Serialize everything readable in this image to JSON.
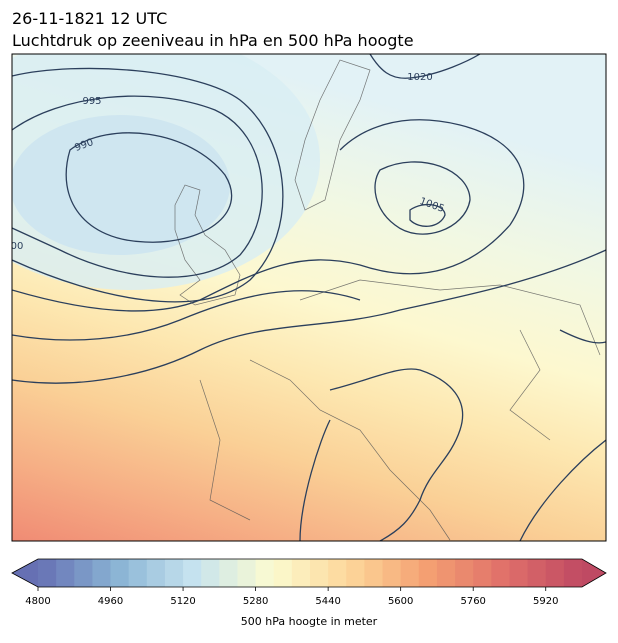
{
  "header": {
    "title": "26-11-1821 12 UTC",
    "subtitle": "Luchtdruk op zeeniveau in hPa en 500 hPa hoogte"
  },
  "map": {
    "contour_labels": [
      "995",
      "990",
      "1020",
      "1005",
      "00"
    ]
  },
  "colorbar": {
    "label": "500 hPa hoogte in meter",
    "range": [
      4800,
      6000
    ],
    "step": 40,
    "ticks": [
      4800,
      4960,
      5120,
      5280,
      5440,
      5600,
      5760,
      5920
    ],
    "colormap": [
      "#6670b3",
      "#89b3d4",
      "#c6e3ef",
      "#fbfbd0",
      "#fdd79a",
      "#f4a072",
      "#e0706a",
      "#bf4a63"
    ]
  }
}
